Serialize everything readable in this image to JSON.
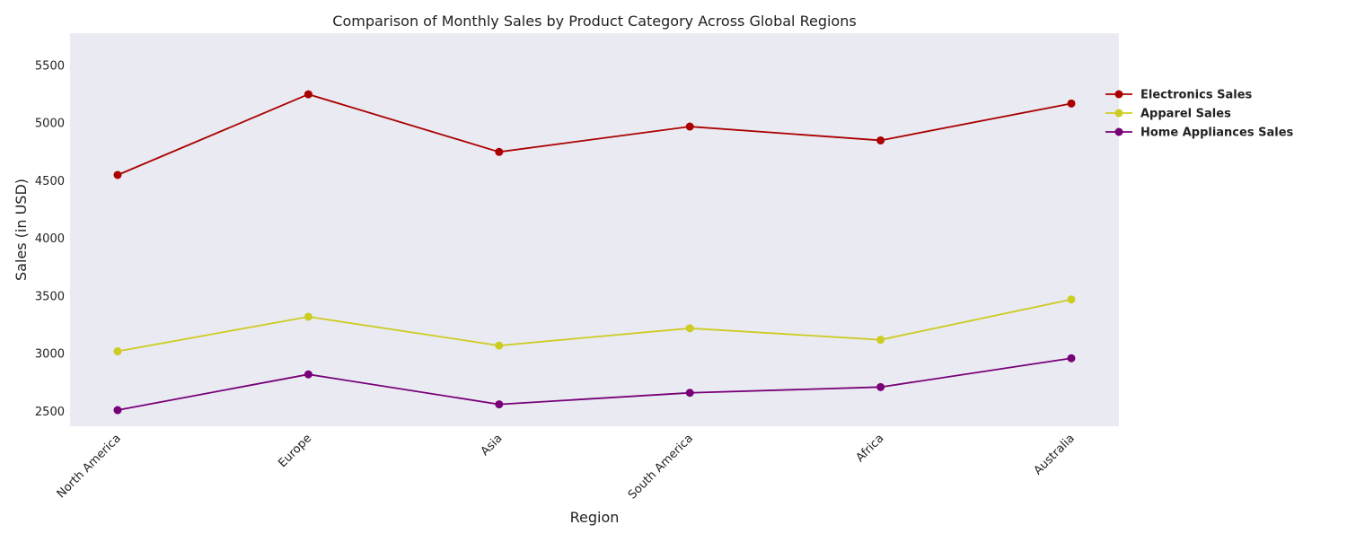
{
  "chart_data": {
    "type": "line",
    "title": "Comparison of Monthly Sales by Product Category Across Global Regions",
    "xlabel": "Region",
    "ylabel": "Sales (in USD)",
    "categories": [
      "North America",
      "Europe",
      "Asia",
      "South America",
      "Africa",
      "Australia"
    ],
    "ylim": [
      2370,
      5780
    ],
    "yticks": [
      2500,
      3000,
      3500,
      4000,
      4500,
      5000,
      5500
    ],
    "grid": false,
    "legend_position": "upper-right-outside",
    "background_color": "#eaeaf2",
    "series": [
      {
        "name": "Electronics Sales",
        "color": "#aa0000",
        "values": [
          4550,
          5250,
          4750,
          4970,
          4850,
          5170
        ]
      },
      {
        "name": "Apparel Sales",
        "color": "#cccc22",
        "values": [
          3020,
          3320,
          3070,
          3220,
          3120,
          3470
        ]
      },
      {
        "name": "Home Appliances Sales",
        "color": "#770077",
        "values": [
          2510,
          2820,
          2560,
          2660,
          2710,
          2960
        ]
      }
    ]
  }
}
